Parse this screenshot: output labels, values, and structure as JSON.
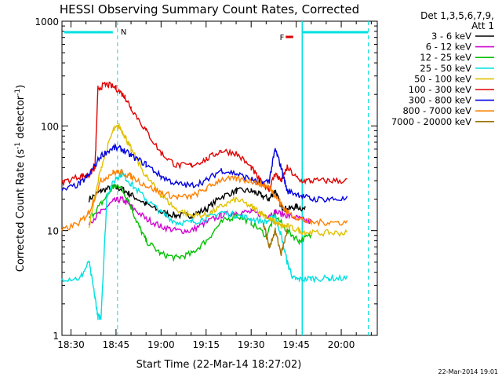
{
  "chart_data": {
    "type": "line",
    "title": "HESSI Observing Summary Count Rates, Corrected",
    "xlabel": "Start Time (22-Mar-14 18:27:02)",
    "ylabel": "Corrected Count Rate (s",
    "ylabel_sup1": "-1",
    "ylabel_mid": " detector",
    "ylabel_sup2": "-1",
    "ylabel_end": ")",
    "y_scale": "log",
    "ylim": [
      1,
      1000
    ],
    "xlim_minutes": [
      -3,
      102
    ],
    "x_ticks": [
      {
        "label": "18:30",
        "m": 0
      },
      {
        "label": "18:45",
        "m": 15
      },
      {
        "label": "19:00",
        "m": 30
      },
      {
        "label": "19:15",
        "m": 45
      },
      {
        "label": "19:30",
        "m": 60
      },
      {
        "label": "19:45",
        "m": 75
      },
      {
        "label": "20:00",
        "m": 90
      }
    ],
    "y_ticks": [
      {
        "label": "1",
        "v": 1
      },
      {
        "label": "10",
        "v": 10
      },
      {
        "label": "100",
        "v": 100
      },
      {
        "label": "1000",
        "v": 1000
      }
    ],
    "legend_title": [
      "Det 1,3,5,6,7,9,",
      "Att 1"
    ],
    "legend_placement": "right",
    "series": [
      {
        "name": "3 - 6 keV",
        "color": "#000000",
        "x": [
          -4,
          3,
          6,
          10,
          14,
          17,
          20,
          25,
          30,
          35,
          40,
          45,
          50,
          55,
          60,
          63,
          66,
          68,
          70,
          72,
          75,
          78,
          80,
          86,
          92
        ],
        "y": [
          null,
          null,
          20,
          24,
          26,
          25,
          22,
          18,
          15,
          14,
          14,
          16,
          21,
          24,
          24,
          22,
          20,
          24,
          17,
          16,
          17,
          16,
          null,
          null,
          null
        ]
      },
      {
        "name": "6 - 12 keV",
        "color": "#d000d0",
        "x": [
          6,
          10,
          14,
          17,
          20,
          25,
          30,
          35,
          40,
          45,
          50,
          55,
          60,
          65,
          68,
          72,
          76,
          80
        ],
        "y": [
          12,
          15,
          19,
          20,
          17,
          13,
          11,
          10,
          10,
          12,
          14,
          15,
          15,
          14,
          15,
          14,
          13,
          12
        ]
      },
      {
        "name": "12 - 25 keV",
        "color": "#00c000",
        "x": [
          6,
          10,
          14,
          16,
          19,
          22,
          25,
          30,
          35,
          40,
          45,
          50,
          55,
          60,
          65,
          68,
          72,
          76,
          80
        ],
        "y": [
          13,
          18,
          26,
          27,
          20,
          12,
          8,
          6,
          5.5,
          6,
          8,
          12,
          14,
          12,
          9,
          14,
          10,
          8,
          9
        ]
      },
      {
        "name": "25 - 50 keV",
        "color": "#00e0e0",
        "x": [
          -3,
          3,
          6,
          8,
          9,
          10,
          12,
          15,
          17,
          20,
          25,
          30,
          35,
          40,
          45,
          50,
          55,
          60,
          65,
          68,
          70,
          72,
          74,
          76,
          80,
          86,
          92,
          94
        ],
        "y": [
          3.5,
          3.5,
          5,
          2.3,
          1.5,
          1.5,
          22,
          32,
          35,
          28,
          20,
          15,
          12,
          12,
          13,
          15,
          14,
          13,
          12,
          14,
          9,
          5,
          3.5,
          3.4,
          3.5,
          3.5,
          3.5,
          null
        ]
      },
      {
        "name": "50 - 100 keV",
        "color": "#e0c000",
        "x": [
          6,
          10,
          14,
          16,
          18,
          20,
          25,
          30,
          35,
          40,
          45,
          50,
          55,
          60,
          63,
          66,
          68,
          70,
          72,
          76,
          80,
          86,
          92
        ],
        "y": [
          11,
          40,
          90,
          100,
          80,
          60,
          33,
          22,
          16,
          14,
          14,
          17,
          20,
          17,
          15,
          13,
          12,
          11,
          11,
          10,
          9.5,
          9.5,
          9.5
        ]
      },
      {
        "name": "100 - 300 keV",
        "color": "#e00000",
        "x": [
          -3,
          3,
          6,
          8,
          9,
          12,
          15,
          18,
          20,
          25,
          30,
          35,
          40,
          45,
          50,
          55,
          60,
          63,
          66,
          68,
          70,
          72,
          76,
          80,
          86,
          92
        ],
        "y": [
          29,
          33,
          34,
          40,
          230,
          250,
          230,
          190,
          150,
          90,
          55,
          42,
          42,
          48,
          58,
          55,
          40,
          30,
          25,
          35,
          30,
          40,
          30,
          30,
          30,
          30
        ]
      },
      {
        "name": "300 - 800 keV",
        "color": "#0000e0",
        "x": [
          -3,
          3,
          6,
          10,
          14,
          17,
          20,
          25,
          30,
          35,
          40,
          45,
          50,
          55,
          60,
          63,
          66,
          68,
          70,
          72,
          76,
          80,
          86,
          92
        ],
        "y": [
          24,
          28,
          34,
          52,
          62,
          60,
          52,
          43,
          33,
          28,
          27,
          30,
          38,
          35,
          31,
          28,
          30,
          60,
          40,
          24,
          22,
          20,
          20,
          20
        ]
      },
      {
        "name": "800 - 7000 keV",
        "color": "#ff8000",
        "x": [
          -3,
          3,
          6,
          10,
          14,
          17,
          20,
          25,
          30,
          35,
          40,
          45,
          50,
          55,
          60,
          63,
          66,
          68,
          70,
          72,
          76,
          80,
          86,
          92
        ],
        "y": [
          10,
          12,
          15,
          30,
          36,
          36,
          33,
          27,
          23,
          21,
          21,
          25,
          31,
          31,
          30,
          28,
          26,
          22,
          18,
          15,
          13,
          12,
          12,
          12
        ]
      },
      {
        "name": "7000 - 20000 keV",
        "color": "#a07000",
        "x": [
          64,
          66,
          68,
          70,
          72
        ],
        "y": [
          12,
          7,
          10,
          6,
          10
        ]
      }
    ],
    "annotations": {
      "n_label": "N",
      "f_label": "F"
    }
  },
  "footer_date": "22-Mar-2014 19:01"
}
